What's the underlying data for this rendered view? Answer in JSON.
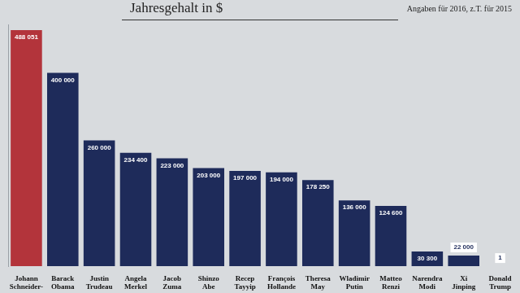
{
  "chart_data": {
    "type": "bar",
    "title": "Jahresgehalt in $",
    "subtitle": "Angaben für 2016, z.T. für 2015",
    "categories": [
      "Johann Schneider-",
      "Barack Obama",
      "Justin Trudeau",
      "Angela Merkel",
      "Jacob Zuma",
      "Shinzo Abe",
      "Recep Tayyip",
      "François Hollande",
      "Theresa May",
      "Wladimir Putin",
      "Matteo Renzi",
      "Narendra Modi",
      "Xi Jinping",
      "Donald Trump"
    ],
    "values": [
      488051,
      400000,
      260000,
      234400,
      223000,
      203000,
      197000,
      194000,
      178250,
      136000,
      124600,
      30300,
      22000,
      1
    ],
    "value_labels": [
      "488 051",
      "400 000",
      "260 000",
      "234 400",
      "223 000",
      "203 000",
      "197 000",
      "194 000",
      "178 250",
      "136 000",
      "124 600",
      "30 300",
      "22 000",
      "1"
    ],
    "colors": [
      "#b3343b",
      "#1e2b5a",
      "#1e2b5a",
      "#1e2b5a",
      "#1e2b5a",
      "#1e2b5a",
      "#1e2b5a",
      "#1e2b5a",
      "#1e2b5a",
      "#1e2b5a",
      "#1e2b5a",
      "#1e2b5a",
      "#1e2b5a",
      "#1e2b5a"
    ],
    "ylim": [
      0,
      500000
    ],
    "grid": false,
    "data_labels": true,
    "tick_labels": "x"
  }
}
